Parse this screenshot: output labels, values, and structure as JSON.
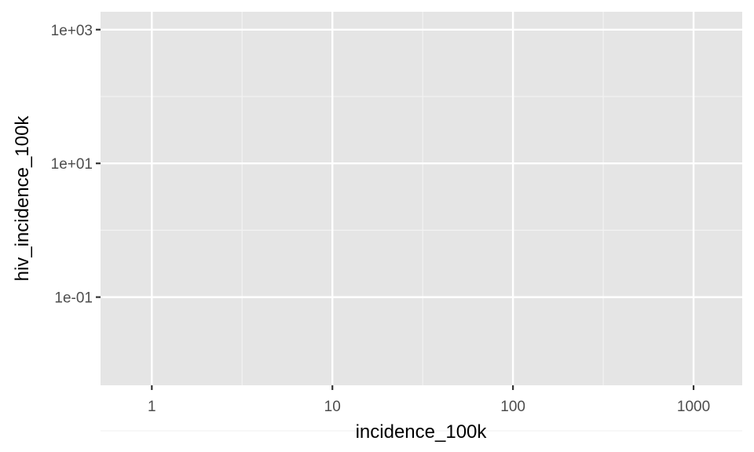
{
  "chart_data": {
    "type": "scatter",
    "title": "",
    "xlabel": "incidence_100k",
    "ylabel": "hiv_incidence_100k",
    "x_scale": "log10",
    "y_scale": "log10",
    "xlim": [
      0.52,
      1860
    ],
    "ylim": [
      0.0048,
      1850
    ],
    "x_ticks": [
      {
        "value": 1,
        "label": "1"
      },
      {
        "value": 10,
        "label": "10"
      },
      {
        "value": 100,
        "label": "100"
      },
      {
        "value": 1000,
        "label": "1000"
      }
    ],
    "y_ticks": [
      {
        "value": 1000,
        "label": "1e+03"
      },
      {
        "value": 10,
        "label": "1e+01"
      },
      {
        "value": 0.1,
        "label": "1e-01"
      }
    ],
    "x_minor_grid": [
      3.1623,
      31.623,
      316.23
    ],
    "y_minor_grid": [
      0.001,
      1,
      100
    ],
    "grid": true,
    "legend": "none",
    "points": []
  },
  "colors": {
    "panel_background": "#e5e5e5",
    "grid_major": "#ffffff",
    "grid_minor": "#f2f2f2",
    "tick_mark": "#333333",
    "tick_label": "#4d4d4d",
    "axis_title": "#000000"
  }
}
